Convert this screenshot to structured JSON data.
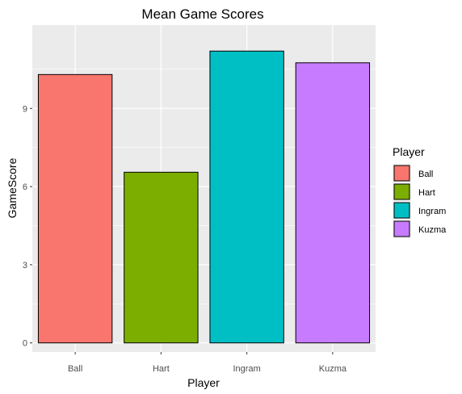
{
  "chart_data": {
    "type": "bar",
    "title": "Mean Game Scores",
    "xlabel": "Player",
    "ylabel": "GameScore",
    "categories": [
      "Ball",
      "Hart",
      "Ingram",
      "Kuzma"
    ],
    "values": [
      10.3,
      6.55,
      11.2,
      10.75
    ],
    "colors": [
      "#F8766D",
      "#7CAE00",
      "#00BFC4",
      "#C77CFF"
    ],
    "ylim": [
      -0.35,
      12.2
    ],
    "yticks": [
      0,
      3,
      6,
      9
    ],
    "ytick_labels": [
      "0",
      "3",
      "6",
      "9"
    ],
    "legend": {
      "title": "Player",
      "placement": "right",
      "entries": [
        "Ball",
        "Hart",
        "Ingram",
        "Kuzma"
      ]
    },
    "grid": true,
    "panel_background": "#EBEBEB",
    "grid_color": "#FFFFFF"
  }
}
